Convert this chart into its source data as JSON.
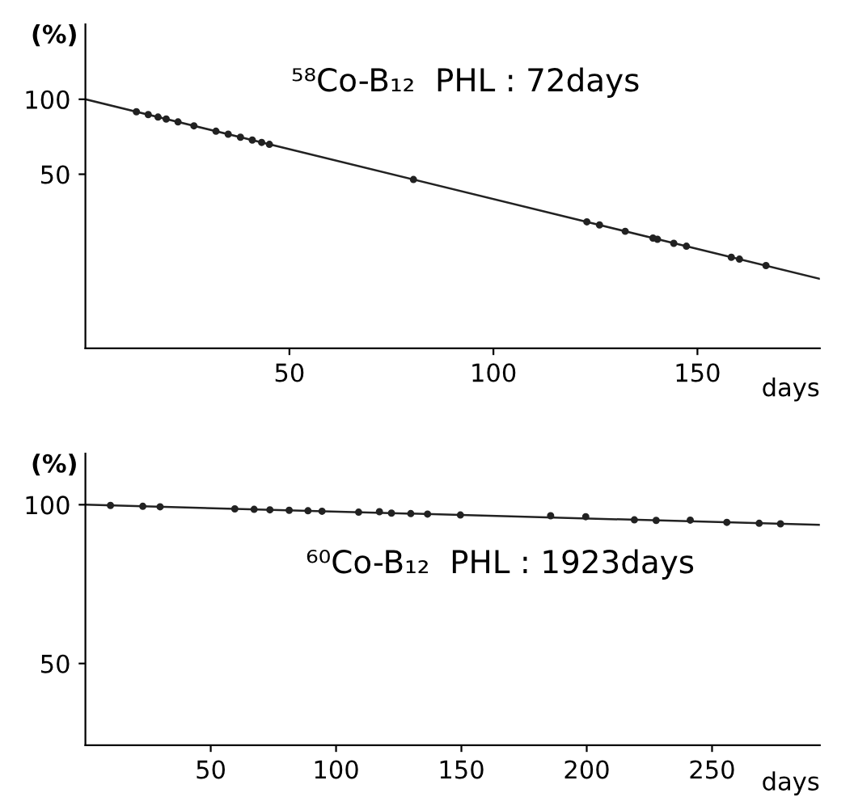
{
  "chart_data": [
    {
      "type": "scatter",
      "log": "y",
      "xlabel": "days",
      "ylabel": "(%)",
      "annotations": [
        "⁵⁸Co-B₁₂  PHL : 72days"
      ],
      "xlim": [
        0,
        180
      ],
      "ylim": [
        10,
        200
      ],
      "xticks": [
        50,
        100,
        150
      ],
      "yticks": [
        100,
        50
      ],
      "line_style": "solid",
      "series": [
        {
          "marker": "circle",
          "color": "#222222",
          "x": [
            12.5,
            15.4,
            17.8,
            19.8,
            22.7,
            26.6,
            32,
            35,
            38,
            40.9,
            43.2,
            45.1,
            80.4,
            122.9,
            126,
            132.3,
            139.1,
            140.2,
            144.2,
            147.3,
            158.3,
            160.3,
            166.8
          ],
          "values": [
            89.1,
            86.8,
            84.8,
            83.3,
            81.1,
            78.2,
            74.4,
            72.4,
            70.4,
            68.6,
            67.1,
            65.9,
            47.6,
            32.2,
            31.3,
            29.5,
            27.7,
            27.4,
            26.4,
            25.7,
            23.2,
            22.8,
            21.5
          ]
        },
        {
          "type": "line",
          "marker": "none",
          "color": "#222222",
          "x": [
            0,
            180
          ],
          "values": [
            100,
            19
          ]
        }
      ]
    },
    {
      "type": "scatter",
      "log": "y",
      "xlabel": "days",
      "ylabel": "(%)",
      "annotations": [
        "⁶⁰Co-B₁₂  PHL : 1923days"
      ],
      "xlim": [
        0,
        293
      ],
      "ylim": [
        35,
        125
      ],
      "xticks": [
        50,
        100,
        150,
        200,
        250
      ],
      "yticks": [
        100,
        50
      ],
      "line_style": "solid",
      "series": [
        {
          "marker": "circle",
          "color": "#222222",
          "x": [
            10,
            22.9,
            29.8,
            59.6,
            67.3,
            73.6,
            81.3,
            88.8,
            94.4,
            109,
            117.3,
            122.1,
            129.8,
            136.5,
            149.6,
            185.6,
            199.6,
            219,
            227.7,
            241.3,
            255.9,
            268.8,
            277.3
          ],
          "values": [
            99.7,
            99.3,
            99.1,
            98.2,
            98.0,
            97.8,
            97.6,
            97.4,
            97.2,
            96.8,
            97,
            96.4,
            96.2,
            96.0,
            95.6,
            95.3,
            94.9,
            93.6,
            93.4,
            93.5,
            92.6,
            92.2,
            92.0
          ]
        },
        {
          "type": "line",
          "marker": "none",
          "color": "#222222",
          "x": [
            0,
            293
          ],
          "values": [
            100,
            91.6
          ]
        }
      ]
    }
  ]
}
